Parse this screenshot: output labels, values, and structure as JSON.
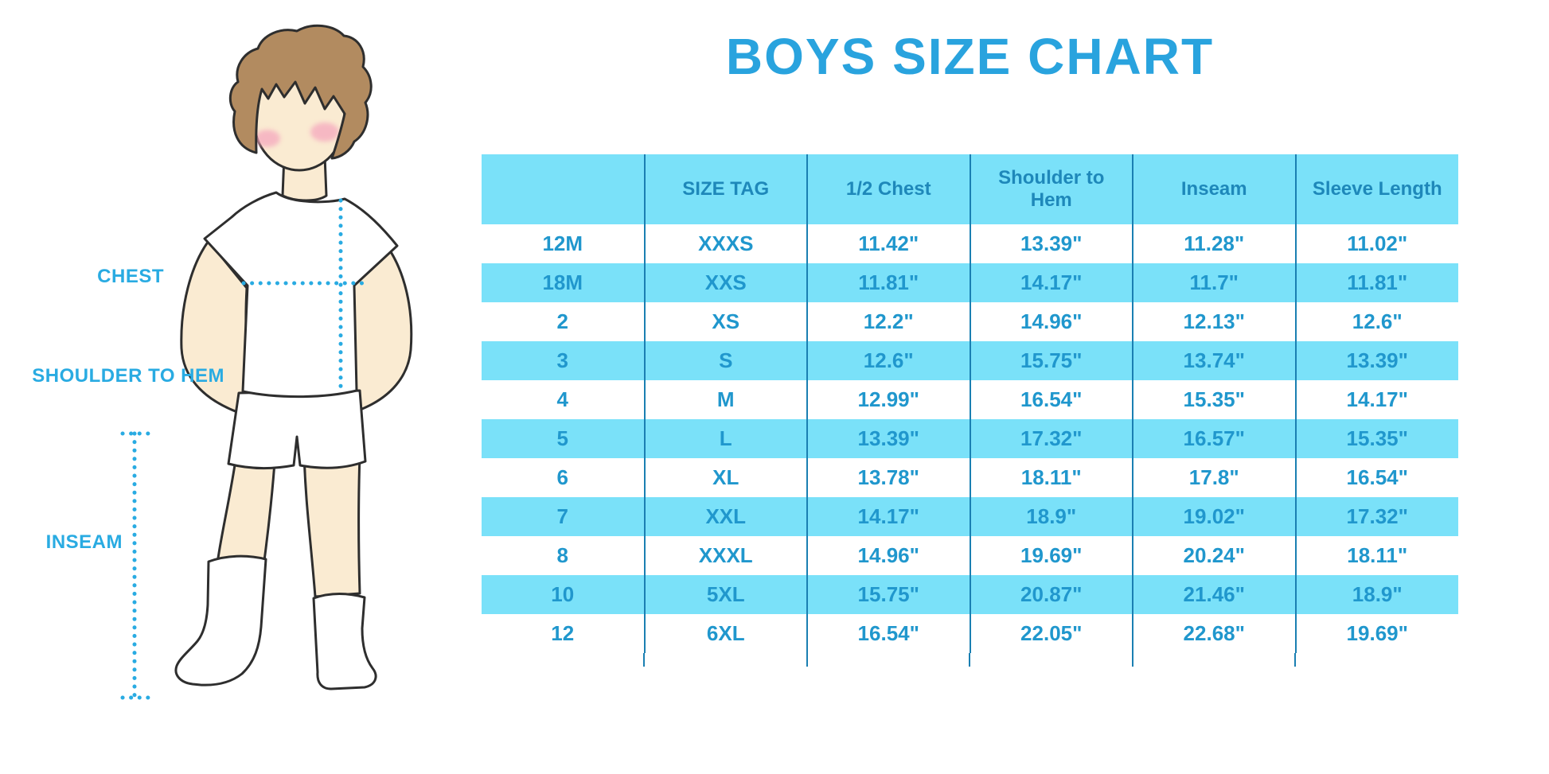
{
  "title": "BOYS SIZE CHART",
  "figure": {
    "chest_label": "CHEST",
    "shoulder_to_hem_label": "SHOULDER TO HEM",
    "inseam_label": "INSEAM"
  },
  "chart_data": {
    "type": "table",
    "title": "BOYS SIZE CHART",
    "columns": [
      "",
      "SIZE TAG",
      "1/2 Chest",
      "Shoulder to Hem",
      "Inseam",
      "Sleeve Length"
    ],
    "rows": [
      [
        "12M",
        "XXXS",
        "11.42\"",
        "13.39\"",
        "11.28\"",
        "11.02\""
      ],
      [
        "18M",
        "XXS",
        "11.81\"",
        "14.17\"",
        "11.7\"",
        "11.81\""
      ],
      [
        "2",
        "XS",
        "12.2\"",
        "14.96\"",
        "12.13\"",
        "12.6\""
      ],
      [
        "3",
        "S",
        "12.6\"",
        "15.75\"",
        "13.74\"",
        "13.39\""
      ],
      [
        "4",
        "M",
        "12.99\"",
        "16.54\"",
        "15.35\"",
        "14.17\""
      ],
      [
        "5",
        "L",
        "13.39\"",
        "17.32\"",
        "16.57\"",
        "15.35\""
      ],
      [
        "6",
        "XL",
        "13.78\"",
        "18.11\"",
        "17.8\"",
        "16.54\""
      ],
      [
        "7",
        "XXL",
        "14.17\"",
        "18.9\"",
        "19.02\"",
        "17.32\""
      ],
      [
        "8",
        "XXXL",
        "14.96\"",
        "19.69\"",
        "20.24\"",
        "18.11\""
      ],
      [
        "10",
        "5XL",
        "15.75\"",
        "20.87\"",
        "21.46\"",
        "18.9\""
      ],
      [
        "12",
        "6XL",
        "16.54\"",
        "22.05\"",
        "22.68\"",
        "19.69\""
      ]
    ],
    "units": "inches",
    "row_striping": "alternating white / light cyan bands, no horizontal grid lines",
    "legend_position": "none"
  },
  "colors": {
    "accent": "#29ABE2",
    "title": "#29A3DE",
    "band_cyan": "#7AE1F9",
    "header_text": "#1E88BA",
    "cell_text": "#2097CD",
    "grid_line": "#1A7FB2",
    "skin": "#FAEBD2",
    "hair": "#B28B60",
    "blush": "#F5A8BE",
    "outline": "#2E2E2E"
  }
}
